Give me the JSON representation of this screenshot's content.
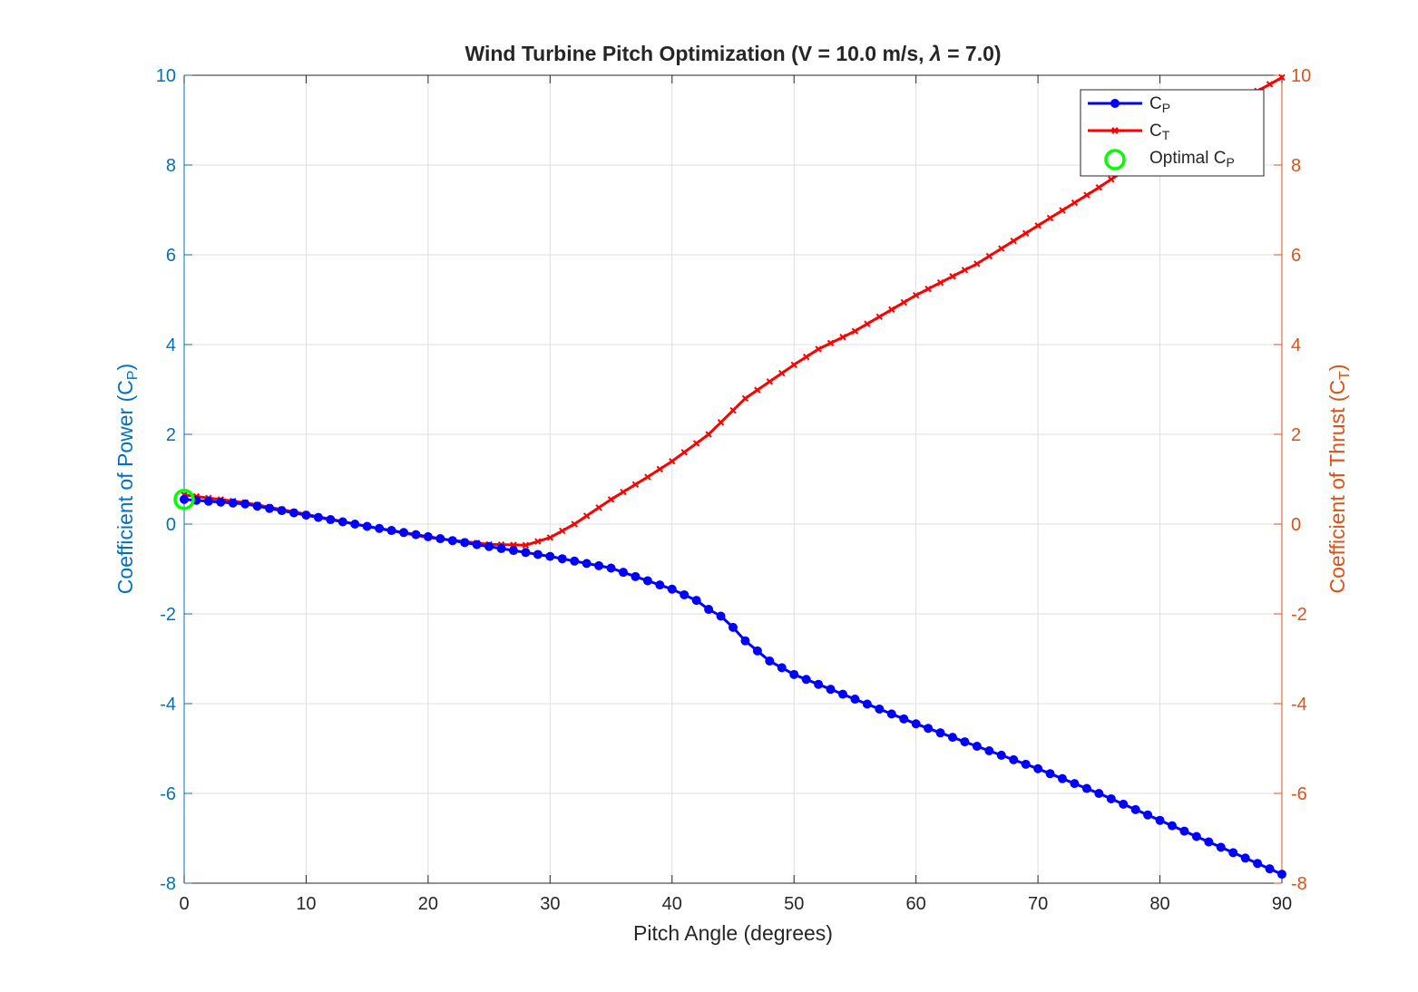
{
  "chart_data": {
    "type": "line",
    "title_main": "Wind Turbine Pitch Optimization (V = 10.0 m/s, ",
    "title_lambda": "λ",
    "title_tail": " = 7.0)",
    "xlabel": "Pitch Angle (degrees)",
    "ylabel_left_main": "Coefficient of Power (C",
    "ylabel_left_sub": "P",
    "ylabel_left_close": ")",
    "ylabel_right_main": "Coefficient of Thrust (C",
    "ylabel_right_sub": "T",
    "ylabel_right_close": ")",
    "xlim": [
      0,
      90
    ],
    "ylim_left": [
      -8,
      10
    ],
    "ylim_right": [
      -8,
      10
    ],
    "x_ticks": [
      "0",
      "10",
      "20",
      "30",
      "40",
      "50",
      "60",
      "70",
      "80",
      "90"
    ],
    "y_ticks_left": [
      "-8",
      "-6",
      "-4",
      "-2",
      "0",
      "2",
      "4",
      "6",
      "8",
      "10"
    ],
    "y_ticks_right": [
      "-8",
      "-6",
      "-4",
      "-2",
      "0",
      "2",
      "4",
      "6",
      "8",
      "10"
    ],
    "grid": true,
    "legend_position": "top-right",
    "x": {
      "start": 0,
      "end": 90,
      "step": 1
    },
    "cp_knots": [
      [
        0,
        0.55
      ],
      [
        5,
        0.45
      ],
      [
        10,
        0.2
      ],
      [
        15,
        -0.05
      ],
      [
        20,
        -0.28
      ],
      [
        25,
        -0.5
      ],
      [
        30,
        -0.72
      ],
      [
        35,
        -0.98
      ],
      [
        40,
        -1.45
      ],
      [
        42,
        -1.7
      ],
      [
        43,
        -1.9
      ],
      [
        44,
        -2.05
      ],
      [
        45,
        -2.3
      ],
      [
        46,
        -2.6
      ],
      [
        48,
        -3.05
      ],
      [
        50,
        -3.35
      ],
      [
        55,
        -3.9
      ],
      [
        60,
        -4.45
      ],
      [
        65,
        -4.95
      ],
      [
        70,
        -5.45
      ],
      [
        75,
        -6.0
      ],
      [
        80,
        -6.6
      ],
      [
        85,
        -7.2
      ],
      [
        90,
        -7.8
      ]
    ],
    "ct_knots": [
      [
        0,
        0.65
      ],
      [
        5,
        0.48
      ],
      [
        10,
        0.22
      ],
      [
        15,
        -0.05
      ],
      [
        20,
        -0.3
      ],
      [
        25,
        -0.45
      ],
      [
        28,
        -0.47
      ],
      [
        30,
        -0.3
      ],
      [
        32,
        0.0
      ],
      [
        35,
        0.55
      ],
      [
        38,
        1.05
      ],
      [
        40,
        1.4
      ],
      [
        43,
        2.0
      ],
      [
        46,
        2.8
      ],
      [
        50,
        3.55
      ],
      [
        52,
        3.9
      ],
      [
        55,
        4.3
      ],
      [
        60,
        5.1
      ],
      [
        65,
        5.8
      ],
      [
        70,
        6.65
      ],
      [
        75,
        7.5
      ],
      [
        80,
        8.4
      ],
      [
        85,
        9.2
      ],
      [
        90,
        9.95
      ]
    ],
    "series": [
      {
        "name": "C",
        "sub": "P",
        "color": "#0000FF",
        "marker": "filled-circle"
      },
      {
        "name": "C",
        "sub": "T",
        "color": "#FF0000",
        "marker": "x"
      }
    ],
    "optimal": {
      "label_main": "Optimal C",
      "label_sub": "P",
      "x": 0,
      "y": 0.55,
      "color": "#00FF00"
    }
  }
}
